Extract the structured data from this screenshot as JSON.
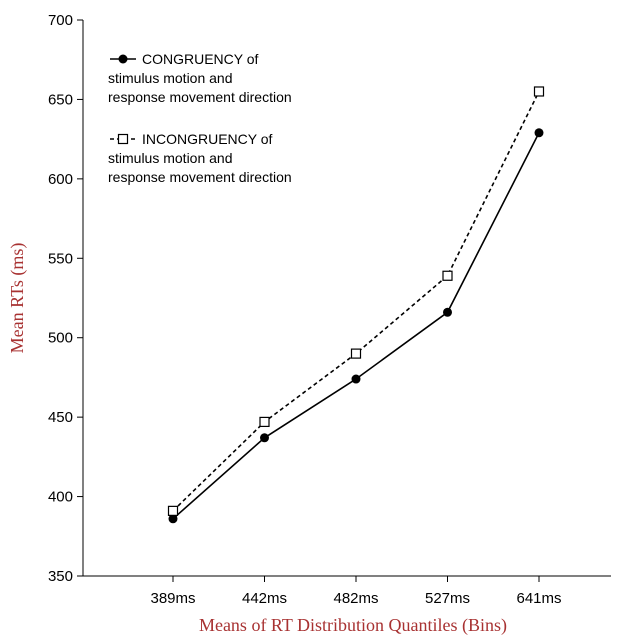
{
  "chart_data": {
    "type": "line",
    "categories": [
      "389ms",
      "442ms",
      "482ms",
      "527ms",
      "641ms"
    ],
    "series": [
      {
        "name_lines": [
          "CONGRUENCY of",
          "stimulus motion and",
          "response movement direction"
        ],
        "values": [
          386,
          437,
          474,
          516,
          629
        ],
        "marker": "filled-circle",
        "line_style": "solid"
      },
      {
        "name_lines": [
          "INCONGRUENCY of",
          "stimulus motion and",
          "response movement direction"
        ],
        "values": [
          391,
          447,
          490,
          539,
          655
        ],
        "marker": "open-square",
        "line_style": "dashed"
      }
    ],
    "xlabel": "Means of RT Distribution Quantiles (Bins)",
    "ylabel": "Mean RTs (ms)",
    "ylim": [
      350,
      700
    ],
    "yticks": [
      350,
      400,
      450,
      500,
      550,
      600,
      650,
      700
    ],
    "grid": false,
    "legend_position": "top-left",
    "colors": {
      "axis_title": "#a83232",
      "lines": "#000000"
    }
  }
}
